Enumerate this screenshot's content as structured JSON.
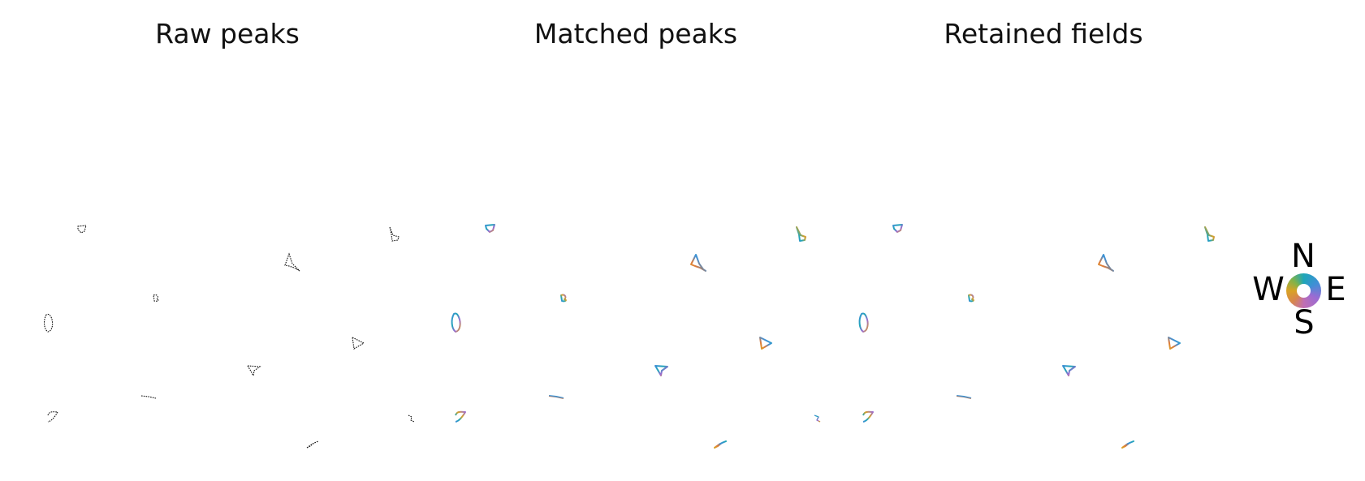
{
  "titles": {
    "raw": "Raw peaks",
    "matched": "Matched peaks",
    "retained": "Retained fields"
  },
  "compass": {
    "north": "N",
    "south": "S",
    "west": "W",
    "east": "E"
  },
  "colors": {
    "raw": "#111111",
    "heading_palette": [
      "#1ea6b8",
      "#3f8fd6",
      "#9b6bd3",
      "#d9a225",
      "#e07b39"
    ]
  }
}
